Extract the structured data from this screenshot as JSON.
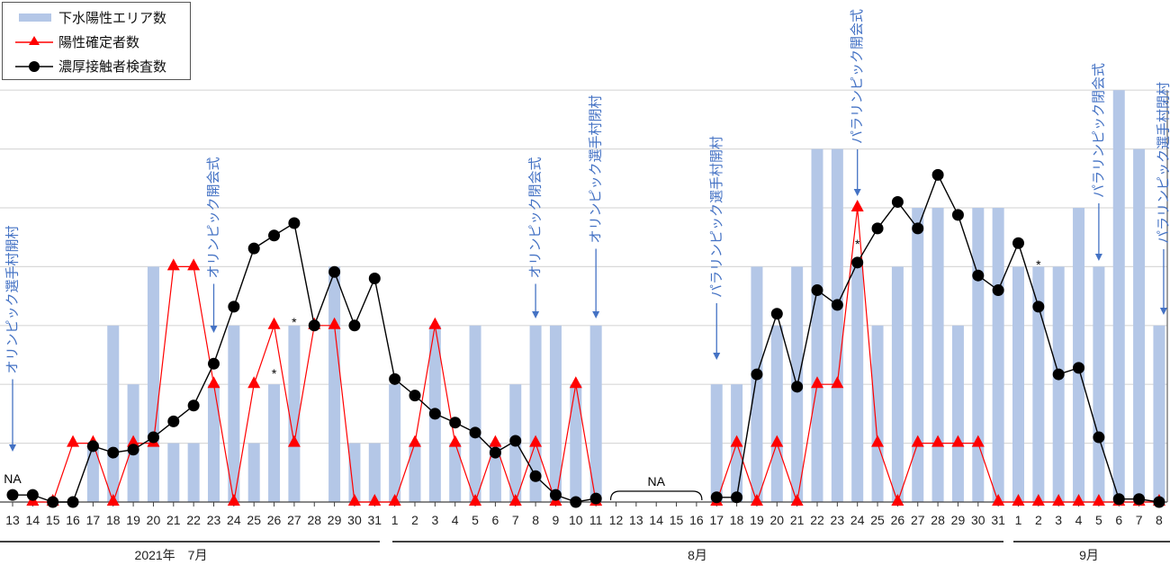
{
  "chart_data": {
    "type": "bar+line",
    "title": "",
    "xlabel": "",
    "ylabel": "",
    "y_axis_labels_shown": false,
    "grid": true,
    "ylim": [
      0,
      7
    ],
    "legend_position": "top-left",
    "categories": [
      "13",
      "14",
      "15",
      "16",
      "17",
      "18",
      "19",
      "20",
      "21",
      "22",
      "23",
      "24",
      "25",
      "26",
      "27",
      "28",
      "29",
      "30",
      "31",
      "1",
      "2",
      "3",
      "4",
      "5",
      "6",
      "7",
      "8",
      "9",
      "10",
      "11",
      "12",
      "13",
      "14",
      "15",
      "16",
      "17",
      "18",
      "19",
      "20",
      "21",
      "22",
      "23",
      "24",
      "25",
      "26",
      "27",
      "28",
      "29",
      "30",
      "31",
      "1",
      "2",
      "3",
      "4",
      "5",
      "6",
      "7",
      "8"
    ],
    "month_groups": [
      {
        "label": "2021年　7月",
        "from": 0,
        "to": 18
      },
      {
        "label": "8月",
        "from": 19,
        "to": 49
      },
      {
        "label": "9月",
        "from": 50,
        "to": 57
      }
    ],
    "series": [
      {
        "name": "下水陽性エリア数",
        "kind": "bar",
        "color": "#b4c7e7",
        "values": [
          0,
          0,
          0,
          0,
          1,
          3,
          2,
          4,
          1,
          1,
          2,
          3,
          1,
          2,
          3,
          0,
          4,
          1,
          1,
          2,
          1,
          3,
          1,
          3,
          1,
          2,
          3,
          3,
          2,
          3,
          null,
          null,
          null,
          null,
          null,
          2,
          2,
          4,
          3,
          4,
          6,
          6,
          4,
          3,
          4,
          5,
          5,
          3,
          5,
          5,
          4,
          4,
          4,
          5,
          4,
          7,
          6,
          3
        ]
      },
      {
        "name": "陽性確定者数",
        "kind": "line",
        "marker": "triangle",
        "color": "#ff0000",
        "values": [
          null,
          0,
          0,
          1,
          1,
          0,
          1,
          1,
          4,
          4,
          2,
          0,
          2,
          3,
          1,
          3,
          3,
          0,
          0,
          0,
          1,
          3,
          1,
          0,
          1,
          0,
          1,
          0,
          2,
          0,
          null,
          null,
          null,
          null,
          null,
          0,
          1,
          0,
          1,
          0,
          2,
          2,
          5,
          1,
          0,
          1,
          1,
          1,
          1,
          0,
          0,
          0,
          0,
          0,
          0,
          0,
          0,
          0
        ]
      },
      {
        "name": "濃厚接触者検査数",
        "kind": "line",
        "marker": "circle",
        "color": "#000000",
        "values": [
          0.12,
          0.12,
          0,
          0,
          0.95,
          0.84,
          0.89,
          1.1,
          1.37,
          1.64,
          2.35,
          3.32,
          4.31,
          4.53,
          4.74,
          3.0,
          3.91,
          3.0,
          3.8,
          2.09,
          1.81,
          1.5,
          1.35,
          1.18,
          0.84,
          1.04,
          0.44,
          0.12,
          0.0,
          0.06,
          null,
          null,
          null,
          null,
          null,
          0.08,
          0.08,
          2.17,
          3.2,
          1.96,
          3.6,
          3.35,
          4.07,
          4.65,
          5.1,
          4.65,
          5.56,
          4.88,
          3.85,
          3.6,
          4.4,
          3.32,
          2.17,
          2.28,
          1.1,
          0.05,
          0.05,
          0
        ]
      }
    ],
    "annotations": [
      {
        "index": 0,
        "text": "オリンピック選手村開村",
        "arrow": "down"
      },
      {
        "index": 10,
        "text": "オリンピック開会式",
        "arrow": "down"
      },
      {
        "index": 26,
        "text": "オリンピック閉会式",
        "arrow": "down"
      },
      {
        "index": 29,
        "text": "オリンピック選手村閉村",
        "arrow": "down"
      },
      {
        "index": 35,
        "text": "パラリンピック選手村開村",
        "arrow": "down"
      },
      {
        "index": 42,
        "text": "パラリンピック開会式",
        "arrow": "down"
      },
      {
        "index": 54,
        "text": "パラリンピック閉会式",
        "arrow": "down"
      },
      {
        "index": 57,
        "text": "パラリンピック選手村閉村",
        "arrow": "down"
      }
    ],
    "asterisks": [
      {
        "index": 13,
        "value": 2.2
      },
      {
        "index": 14,
        "value": 3.07
      },
      {
        "index": 42,
        "value": 4.4
      },
      {
        "index": 51,
        "value": 4.05
      }
    ],
    "na_labels": [
      {
        "from": 0,
        "to": 0,
        "text": "NA",
        "bracket": false
      },
      {
        "from": 30,
        "to": 34,
        "text": "NA",
        "bracket": true
      }
    ]
  },
  "legend": {
    "items": [
      {
        "label": "下水陽性エリア数"
      },
      {
        "label": "陽性確定者数"
      },
      {
        "label": "濃厚接触者検査数"
      }
    ]
  }
}
